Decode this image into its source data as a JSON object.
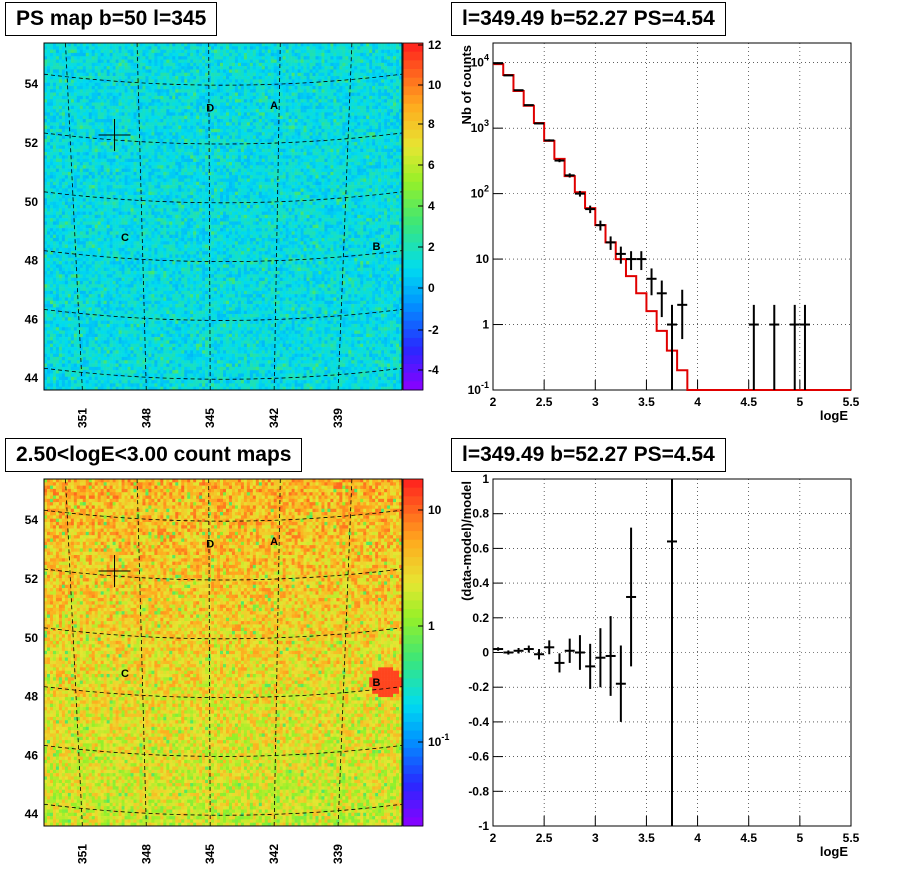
{
  "titles": {
    "ps_map": "PS map b=50 l=345",
    "spectrum": "l=349.49 b=52.27 PS=4.54",
    "count_map": "2.50<logE<3.00 count maps",
    "residual": "l=349.49 b=52.27 PS=4.54"
  },
  "chart_data": [
    {
      "type": "heatmap",
      "id": "ps_map",
      "title": "PS map b=50 l=345",
      "x_tick_labels": [
        "351",
        "348",
        "345",
        "342",
        "339"
      ],
      "y_tick_labels": [
        "44",
        "46",
        "48",
        "50",
        "52",
        "54"
      ],
      "colorbar": {
        "ticks": [
          "-4",
          "-2",
          "0",
          "2",
          "4",
          "6",
          "8",
          "10",
          "12"
        ],
        "range": [
          -5,
          12
        ]
      },
      "sources": [
        {
          "label": "A",
          "l": 342,
          "b": 53.3
        },
        {
          "label": "B",
          "l": 337.2,
          "b": 48.5
        },
        {
          "label": "C",
          "l": 349,
          "b": 48.8
        },
        {
          "label": "D",
          "l": 345,
          "b": 53.2
        }
      ],
      "marker": {
        "l": 349.49,
        "b": 52.27
      }
    },
    {
      "type": "line",
      "id": "spectrum",
      "title": "l=349.49 b=52.27 PS=4.54",
      "xlabel": "logE",
      "ylabel": "Nb of counts",
      "xlim": [
        2,
        5.5
      ],
      "ylim": [
        0.1,
        20000
      ],
      "yscale": "log",
      "x_ticks": [
        "2",
        "2.5",
        "3",
        "3.5",
        "4",
        "4.5",
        "5",
        "5.5"
      ],
      "y_ticks": [
        "10^-1",
        "1",
        "10",
        "10^2",
        "10^3",
        "10^4"
      ],
      "grid": true,
      "model": {
        "bin_edges": [
          2.0,
          2.1,
          2.2,
          2.3,
          2.4,
          2.5,
          2.6,
          2.7,
          2.8,
          2.9,
          3.0,
          3.1,
          3.2,
          3.3,
          3.4,
          3.5,
          3.6,
          3.7,
          3.8,
          3.9,
          4.0,
          4.1,
          4.2,
          4.3,
          4.4,
          4.5,
          4.6,
          4.7,
          4.8,
          4.9,
          5.0,
          5.1,
          5.2,
          5.3,
          5.4,
          5.5
        ],
        "values": [
          9500,
          6500,
          3700,
          2200,
          1200,
          640,
          340,
          185,
          105,
          60,
          33,
          18,
          10,
          5.5,
          3,
          1.6,
          0.8,
          0.4,
          0.2,
          0.1,
          0.1,
          0.1,
          0.1,
          0.1,
          0.1,
          0.1,
          0.1,
          0.1,
          0.1,
          0.1,
          0.1,
          0.1,
          0.1,
          0.1,
          0.1
        ]
      },
      "data": {
        "x": [
          2.05,
          2.15,
          2.25,
          2.35,
          2.45,
          2.55,
          2.65,
          2.75,
          2.85,
          2.95,
          3.05,
          3.15,
          3.25,
          3.35,
          3.45,
          3.55,
          3.65,
          3.75,
          3.85,
          4.55,
          4.75,
          4.95,
          5.05
        ],
        "y": [
          9800,
          6400,
          3800,
          2250,
          1180,
          650,
          320,
          190,
          100,
          58,
          33,
          18,
          12,
          10,
          10,
          5,
          3,
          1,
          2,
          1,
          1,
          1,
          1
        ],
        "err_low": [
          100,
          80,
          62,
          47,
          34,
          25,
          18,
          14,
          10,
          7.6,
          5.7,
          4.2,
          3.5,
          3.2,
          3.2,
          2.2,
          1.7,
          1,
          1.4,
          1,
          1,
          1,
          1
        ],
        "err_high": [
          100,
          80,
          62,
          47,
          34,
          25,
          18,
          14,
          10,
          7.6,
          5.7,
          4.2,
          3.5,
          3.2,
          3.2,
          2.2,
          1.7,
          1,
          1.4,
          1,
          1,
          1,
          1
        ]
      }
    },
    {
      "type": "heatmap",
      "id": "count_map",
      "title": "2.50<logE<3.00 count maps",
      "x_tick_labels": [
        "351",
        "348",
        "345",
        "342",
        "339"
      ],
      "y_tick_labels": [
        "44",
        "46",
        "48",
        "50",
        "52",
        "54"
      ],
      "colorbar": {
        "ticks": [
          "10",
          "1",
          "10^-1"
        ],
        "scale": "log"
      },
      "sources": [
        {
          "label": "A",
          "l": 342,
          "b": 53.3
        },
        {
          "label": "B",
          "l": 337.2,
          "b": 48.5
        },
        {
          "label": "C",
          "l": 349,
          "b": 48.8
        },
        {
          "label": "D",
          "l": 345,
          "b": 53.2
        }
      ],
      "marker": {
        "l": 349.49,
        "b": 52.27
      }
    },
    {
      "type": "scatter",
      "id": "residual",
      "title": "l=349.49 b=52.27 PS=4.54",
      "xlabel": "logE",
      "ylabel": "(data-model)/model",
      "xlim": [
        2,
        5.5
      ],
      "ylim": [
        -1,
        1
      ],
      "x_ticks": [
        "2",
        "2.5",
        "3",
        "3.5",
        "4",
        "4.5",
        "5",
        "5.5"
      ],
      "y_ticks": [
        "-1",
        "-0.8",
        "-0.6",
        "-0.4",
        "-0.2",
        "0",
        "0.2",
        "0.4",
        "0.6",
        "0.8",
        "1"
      ],
      "grid": true,
      "data": {
        "x": [
          2.05,
          2.15,
          2.25,
          2.35,
          2.45,
          2.55,
          2.65,
          2.75,
          2.85,
          2.95,
          3.05,
          3.15,
          3.25,
          3.35,
          3.75
        ],
        "y": [
          0.02,
          0.0,
          0.01,
          0.02,
          -0.01,
          0.03,
          -0.06,
          0.01,
          0.0,
          -0.08,
          -0.03,
          -0.02,
          -0.18,
          0.32,
          0.64
        ],
        "err": [
          0.01,
          0.012,
          0.016,
          0.02,
          0.03,
          0.04,
          0.055,
          0.07,
          0.1,
          0.13,
          0.17,
          0.23,
          0.22,
          0.4,
          1.64
        ]
      }
    }
  ]
}
